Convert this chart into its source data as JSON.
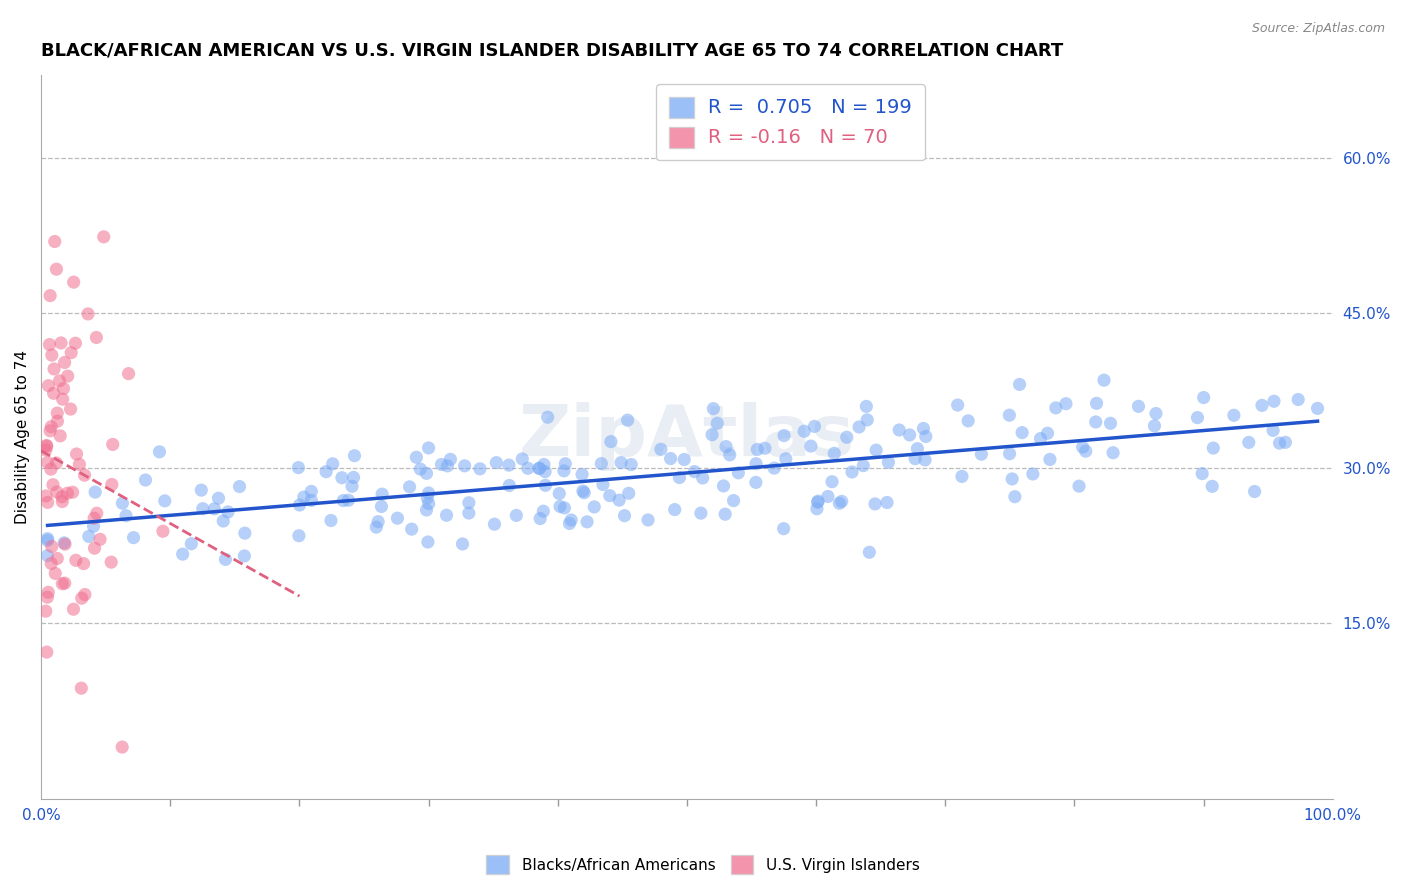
{
  "title": "BLACK/AFRICAN AMERICAN VS U.S. VIRGIN ISLANDER DISABILITY AGE 65 TO 74 CORRELATION CHART",
  "source": "Source: ZipAtlas.com",
  "ylabel": "Disability Age 65 to 74",
  "xlim": [
    0,
    1.0
  ],
  "ylim": [
    -0.02,
    0.68
  ],
  "ytick_labels_right": [
    "15.0%",
    "30.0%",
    "45.0%",
    "60.0%"
  ],
  "ytick_vals_right": [
    0.15,
    0.3,
    0.45,
    0.6
  ],
  "blue_R": 0.705,
  "blue_N": 199,
  "pink_R": -0.16,
  "pink_N": 70,
  "blue_color": "#7aaaf5",
  "pink_color": "#f07090",
  "blue_line_color": "#2255cc",
  "pink_line_color": "#e06080",
  "watermark": "ZipAtlas",
  "legend_label_blue": "Blacks/African Americans",
  "legend_label_pink": "U.S. Virgin Islanders",
  "grid_color": "#bbbbbb",
  "title_fontsize": 13,
  "axis_label_fontsize": 11,
  "tick_fontsize": 11
}
